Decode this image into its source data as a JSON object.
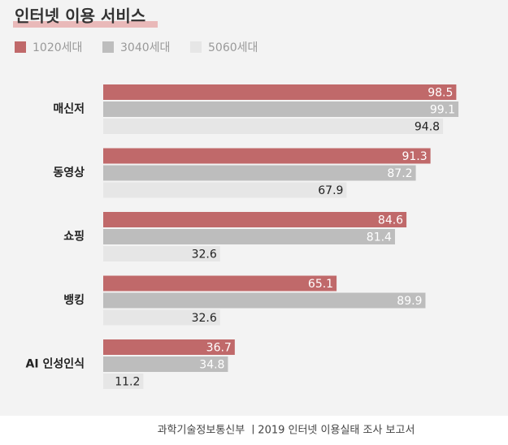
{
  "chart_data": {
    "type": "bar",
    "orientation": "horizontal",
    "title": "인터넷 이용 서비스",
    "categories": [
      "매신저",
      "동영상",
      "쇼핑",
      "뱅킹",
      "AI 인성인식"
    ],
    "series": [
      {
        "name": "1020세대",
        "color": "#c0696a",
        "values": [
          98.5,
          91.3,
          84.6,
          65.1,
          36.7
        ]
      },
      {
        "name": "3040세대",
        "color": "#bdbdbd",
        "values": [
          99.1,
          87.2,
          81.4,
          89.9,
          34.8
        ]
      },
      {
        "name": "5060세대",
        "color": "#e6e6e6",
        "values": [
          94.8,
          67.9,
          32.6,
          32.6,
          11.2
        ]
      }
    ],
    "source": "과학기술정보통신부  ㅣ2019 인터넷 이용실태 조사 보고서"
  }
}
